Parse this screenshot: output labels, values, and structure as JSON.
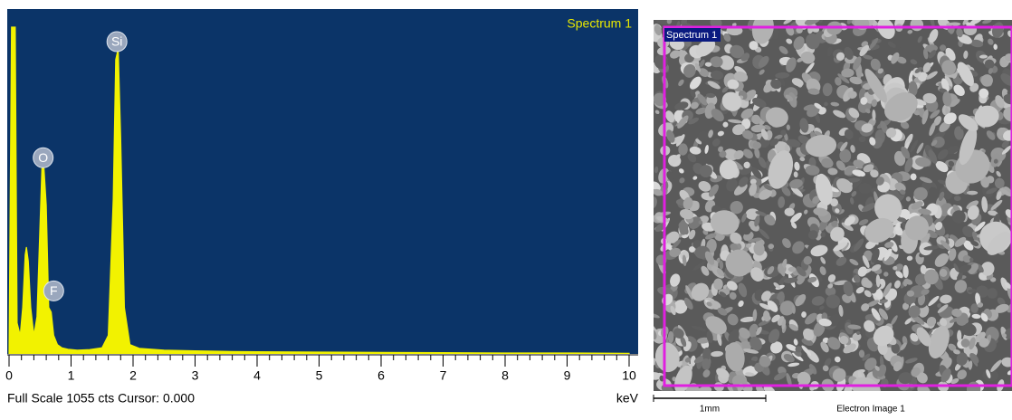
{
  "chart_data": {
    "type": "area",
    "title": "Spectrum 1",
    "footer": "Full Scale 1055 cts Cursor: 0.000",
    "x_label": "keV",
    "color": "#f2f200",
    "background": "#0b3468",
    "xlim": [
      0,
      10
    ],
    "xticks": [
      0,
      1,
      2,
      3,
      4,
      5,
      6,
      7,
      8,
      9,
      10
    ],
    "ylim": [
      0,
      1055
    ],
    "x": [
      0,
      0.04,
      0.1,
      0.13,
      0.18,
      0.22,
      0.26,
      0.28,
      0.31,
      0.35,
      0.4,
      0.45,
      0.5,
      0.53,
      0.56,
      0.6,
      0.64,
      0.68,
      0.72,
      0.78,
      0.85,
      0.95,
      1.1,
      1.3,
      1.5,
      1.6,
      1.68,
      1.72,
      1.76,
      1.8,
      1.86,
      1.95,
      2.1,
      2.5,
      3,
      3.5,
      4,
      5,
      6,
      7,
      8,
      9,
      10
    ],
    "values": [
      0,
      1055,
      1055,
      100,
      60,
      150,
      320,
      345,
      300,
      150,
      60,
      120,
      420,
      600,
      610,
      480,
      150,
      135,
      60,
      30,
      20,
      15,
      12,
      14,
      20,
      60,
      500,
      950,
      985,
      700,
      150,
      30,
      18,
      12,
      10,
      8,
      7,
      6,
      5,
      4,
      3,
      3,
      2
    ],
    "annotations": [
      {
        "text": "Si",
        "x": 1.74,
        "y": 985
      },
      {
        "text": "O",
        "x": 0.55,
        "y": 610
      },
      {
        "text": "F",
        "x": 0.72,
        "y": 180
      }
    ]
  },
  "image": {
    "label": "Spectrum 1",
    "scale_bar": "1mm",
    "caption": "Electron Image 1"
  }
}
